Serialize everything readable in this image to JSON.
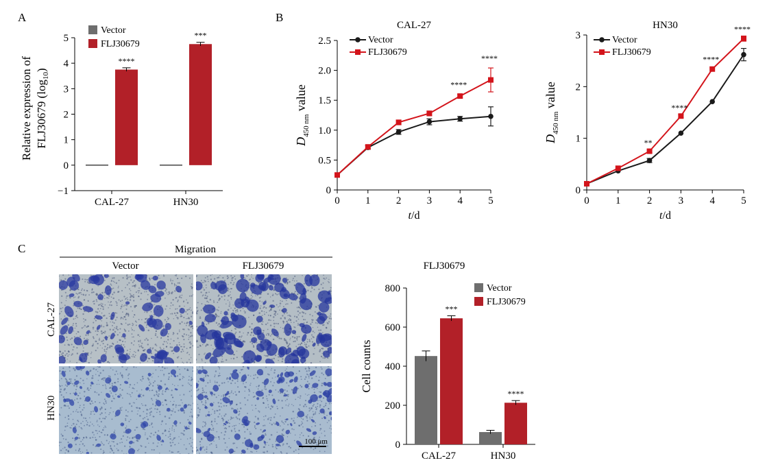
{
  "colors": {
    "vector": "#6e6e6e",
    "flj": "#b22028",
    "line_vector": "#1a1a1a",
    "line_flj": "#d3141b",
    "axis": "#000000"
  },
  "panels": {
    "a": "A",
    "b": "B",
    "c": "C"
  },
  "chart_data": [
    {
      "id": "A",
      "type": "bar",
      "categories": [
        "CAL-27",
        "HN30"
      ],
      "series": [
        {
          "name": "Vector",
          "values": [
            0,
            0
          ]
        },
        {
          "name": "FLJ30679",
          "values": [
            3.75,
            4.75
          ],
          "errors": [
            0.07,
            0.07
          ],
          "annotations": [
            "****",
            "***"
          ]
        }
      ],
      "ylabel": "Relative expression of",
      "ylabel2": "FLJ30679 (log",
      "ylabel2_sub": "10",
      "ylabel2_end": ")",
      "ylim": [
        -1,
        5
      ],
      "yticks": [
        "−1",
        "0",
        "1",
        "2",
        "3",
        "4",
        "5"
      ],
      "legend": "top-left"
    },
    {
      "id": "B1",
      "type": "line",
      "title": "CAL-27",
      "x": [
        0,
        1,
        2,
        3,
        4,
        5
      ],
      "series": [
        {
          "name": "Vector",
          "values": [
            0.25,
            0.71,
            0.97,
            1.14,
            1.19,
            1.23
          ],
          "errors": [
            0.02,
            0.03,
            0.04,
            0.05,
            0.04,
            0.16
          ]
        },
        {
          "name": "FLJ30679",
          "values": [
            0.25,
            0.72,
            1.13,
            1.28,
            1.57,
            1.84
          ],
          "errors": [
            0.02,
            0.03,
            0.04,
            0.04,
            0.03,
            0.2
          ],
          "annotations": [
            "",
            "",
            "",
            "",
            "****",
            "****"
          ]
        }
      ],
      "xlabel_italic": "t",
      "xlabel_rest": "/d",
      "ylabel_italic": "D",
      "ylabel_sub": "450 nm",
      "ylabel_rest": " value",
      "xlim": [
        0,
        5
      ],
      "ylim": [
        0,
        2.5
      ],
      "xticks": [
        "0",
        "1",
        "2",
        "3",
        "4",
        "5"
      ],
      "yticks": [
        "0",
        "0.5",
        "1.0",
        "1.5",
        "2.0",
        "2.5"
      ],
      "legend": "top-left"
    },
    {
      "id": "B2",
      "type": "line",
      "title": "HN30",
      "x": [
        0,
        1,
        2,
        3,
        4,
        5
      ],
      "series": [
        {
          "name": "Vector",
          "values": [
            0.12,
            0.37,
            0.57,
            1.1,
            1.71,
            2.62
          ],
          "errors": [
            0.02,
            0.02,
            0.04,
            0.02,
            0.02,
            0.12
          ]
        },
        {
          "name": "FLJ30679",
          "values": [
            0.12,
            0.42,
            0.75,
            1.43,
            2.34,
            2.93
          ],
          "errors": [
            0.02,
            0.02,
            0.03,
            0.03,
            0.02,
            0.05
          ],
          "annotations": [
            "",
            "",
            "**",
            "****",
            "****",
            "****"
          ]
        }
      ],
      "xlabel_italic": "t",
      "xlabel_rest": "/d",
      "ylabel_italic": "D",
      "ylabel_sub": "450 nm",
      "ylabel_rest": " value",
      "xlim": [
        0,
        5
      ],
      "ylim": [
        0,
        3
      ],
      "xticks": [
        "0",
        "1",
        "2",
        "3",
        "4",
        "5"
      ],
      "yticks": [
        "0",
        "1",
        "2",
        "3"
      ],
      "legend": "top-left"
    },
    {
      "id": "C",
      "type": "bar",
      "title": "FLJ30679",
      "categories": [
        "CAL-27",
        "HN30"
      ],
      "series": [
        {
          "name": "Vector",
          "values": [
            452,
            63
          ],
          "errors": [
            26,
            9
          ]
        },
        {
          "name": "FLJ30679",
          "values": [
            645,
            213
          ],
          "errors": [
            13,
            11
          ],
          "annotations": [
            "***",
            "****"
          ]
        }
      ],
      "ylabel": "Cell counts",
      "ylim": [
        0,
        800
      ],
      "yticks": [
        "0",
        "200",
        "400",
        "600",
        "800"
      ],
      "legend": "top-right"
    }
  ],
  "micrographs": {
    "header": "Migration",
    "columns": [
      "Vector",
      "FLJ30679"
    ],
    "rows": [
      "CAL-27",
      "HN30"
    ],
    "scale_bar": "100 μm"
  }
}
